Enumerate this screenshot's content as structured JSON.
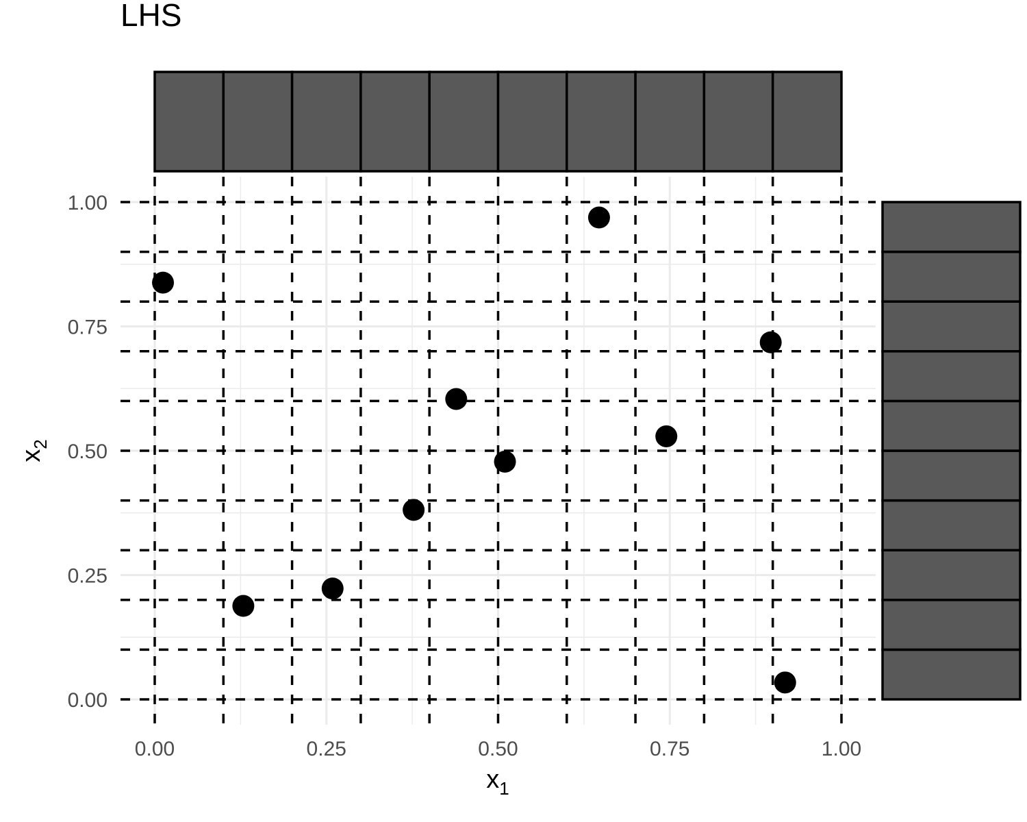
{
  "chart_data": {
    "type": "scatter",
    "title": "LHS",
    "xlabel": {
      "base": "x",
      "sub": "1"
    },
    "ylabel": {
      "base": "x",
      "sub": "2"
    },
    "xlim": [
      0,
      1
    ],
    "ylim": [
      0,
      1
    ],
    "x_ticks": [
      "0.00",
      "0.25",
      "0.50",
      "0.75",
      "1.00"
    ],
    "y_ticks": [
      "0.00",
      "0.25",
      "0.50",
      "0.75",
      "1.00"
    ],
    "tick_values": [
      0,
      0.25,
      0.5,
      0.75,
      1.0
    ],
    "grid": true,
    "strata_boundaries": [
      0,
      0.1,
      0.2,
      0.3,
      0.4,
      0.5,
      0.6,
      0.7,
      0.8,
      0.9,
      1.0
    ],
    "marginal_top": {
      "bins": 10,
      "counts": [
        1,
        1,
        1,
        1,
        1,
        1,
        1,
        1,
        1,
        1
      ]
    },
    "marginal_right": {
      "bins": 10,
      "counts": [
        1,
        1,
        1,
        1,
        1,
        1,
        1,
        1,
        1,
        1
      ]
    },
    "points": [
      {
        "x": 0.012,
        "y": 0.838
      },
      {
        "x": 0.129,
        "y": 0.188
      },
      {
        "x": 0.259,
        "y": 0.223
      },
      {
        "x": 0.377,
        "y": 0.381
      },
      {
        "x": 0.439,
        "y": 0.604
      },
      {
        "x": 0.51,
        "y": 0.478
      },
      {
        "x": 0.647,
        "y": 0.969
      },
      {
        "x": 0.745,
        "y": 0.529
      },
      {
        "x": 0.897,
        "y": 0.718
      },
      {
        "x": 0.918,
        "y": 0.034
      }
    ],
    "colors": {
      "point": "#000000",
      "bar_fill": "#595959",
      "bar_stroke": "#000000",
      "grid": "#ebebeb",
      "dashed": "#000000",
      "tick_text": "#4d4d4d"
    }
  }
}
